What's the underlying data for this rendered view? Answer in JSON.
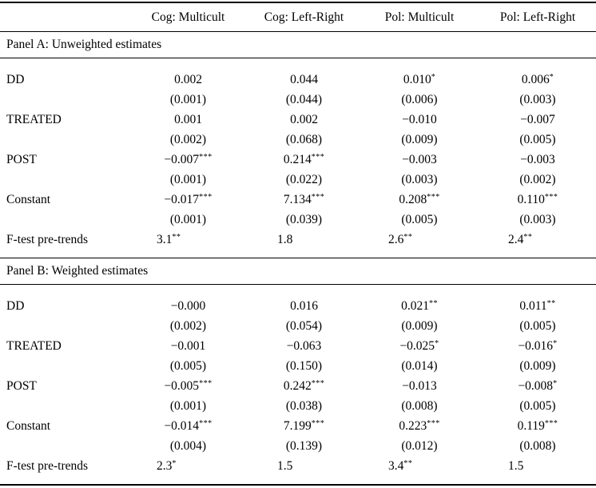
{
  "table": {
    "columns": [
      "",
      "Cog: Multicult",
      "Cog: Left-Right",
      "Pol: Multicult",
      "Pol: Left-Right"
    ],
    "panels": [
      {
        "title": "Panel A: Unweighted estimates",
        "rows": [
          {
            "label": "DD",
            "cells": [
              "0.002",
              "0.044",
              "0.010*",
              "0.006*"
            ]
          },
          {
            "label": "",
            "cells": [
              "(0.001)",
              "(0.044)",
              "(0.006)",
              "(0.003)"
            ]
          },
          {
            "label": "TREATED",
            "cells": [
              "0.001",
              "0.002",
              "−0.010",
              "−0.007"
            ]
          },
          {
            "label": "",
            "cells": [
              "(0.002)",
              "(0.068)",
              "(0.009)",
              "(0.005)"
            ]
          },
          {
            "label": "POST",
            "cells": [
              "−0.007***",
              "0.214***",
              "−0.003",
              "−0.003"
            ]
          },
          {
            "label": "",
            "cells": [
              "(0.001)",
              "(0.022)",
              "(0.003)",
              "(0.002)"
            ]
          },
          {
            "label": "Constant",
            "cells": [
              "−0.017***",
              "7.134***",
              "0.208***",
              "0.110***"
            ]
          },
          {
            "label": "",
            "cells": [
              "(0.001)",
              "(0.039)",
              "(0.005)",
              "(0.003)"
            ]
          },
          {
            "label": "F-test pre-trends",
            "cells": [
              "3.1**",
              "1.8",
              "2.6**",
              "2.4**"
            ],
            "ftest": true
          }
        ]
      },
      {
        "title": "Panel B: Weighted estimates",
        "rows": [
          {
            "label": "DD",
            "cells": [
              "−0.000",
              "0.016",
              "0.021**",
              "0.011**"
            ]
          },
          {
            "label": "",
            "cells": [
              "(0.002)",
              "(0.054)",
              "(0.009)",
              "(0.005)"
            ]
          },
          {
            "label": "TREATED",
            "cells": [
              "−0.001",
              "−0.063",
              "−0.025*",
              "−0.016*"
            ]
          },
          {
            "label": "",
            "cells": [
              "(0.005)",
              "(0.150)",
              "(0.014)",
              "(0.009)"
            ]
          },
          {
            "label": "POST",
            "cells": [
              "−0.005***",
              "0.242***",
              "−0.013",
              "−0.008*"
            ]
          },
          {
            "label": "",
            "cells": [
              "(0.001)",
              "(0.038)",
              "(0.008)",
              "(0.005)"
            ]
          },
          {
            "label": "Constant",
            "cells": [
              "−0.014***",
              "7.199***",
              "0.223***",
              "0.119***"
            ]
          },
          {
            "label": "",
            "cells": [
              "(0.004)",
              "(0.139)",
              "(0.012)",
              "(0.008)"
            ]
          },
          {
            "label": "F-test pre-trends",
            "cells": [
              "2.3*",
              "1.5",
              "3.4**",
              "1.5"
            ],
            "ftest": true
          }
        ]
      }
    ]
  }
}
